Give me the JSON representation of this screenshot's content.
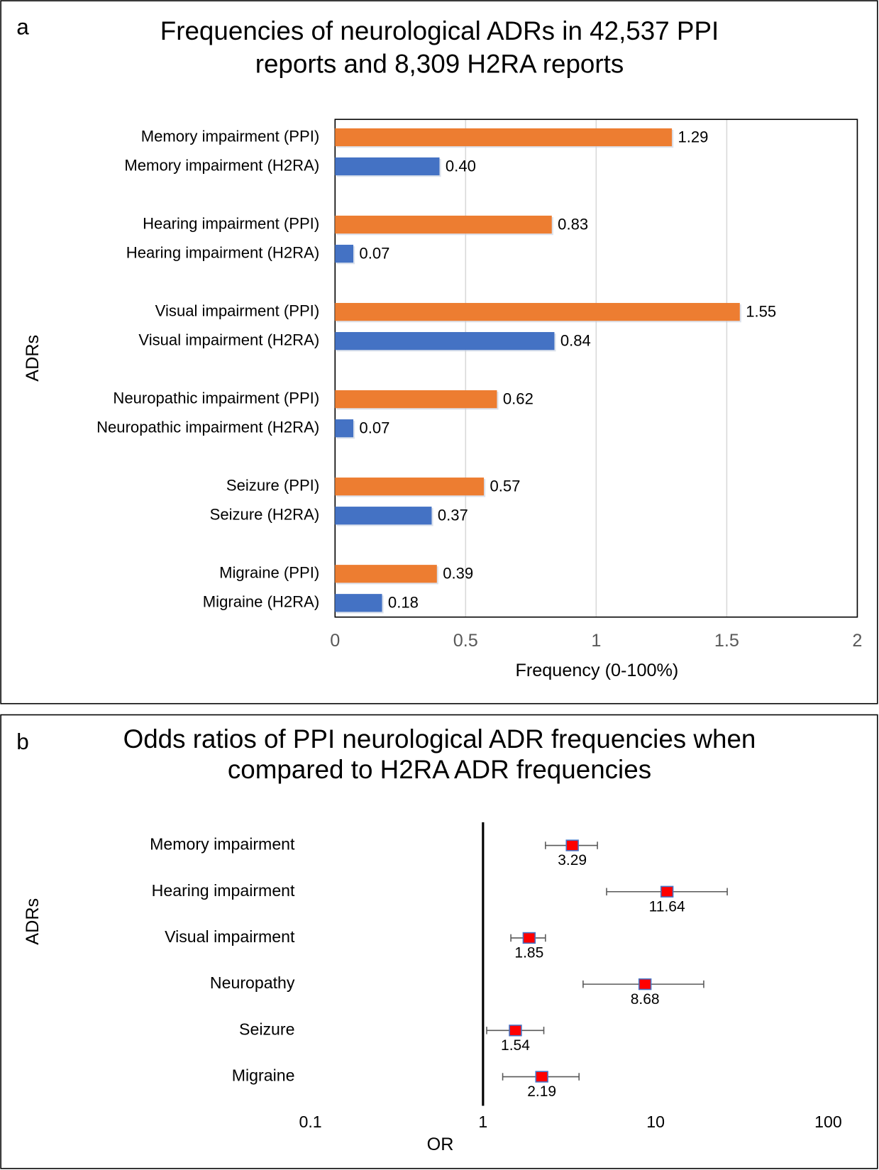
{
  "chart_data": [
    {
      "type": "hbar",
      "panel_label": "a",
      "title": [
        "Frequencies of neurological  ADRs in 42,537 PPI",
        "reports and 8,309 H2RA reports"
      ],
      "x_label": "Frequency (0-100%)",
      "y_label": "ADRs",
      "categories": [
        "Memory impairment (PPI)",
        "Memory impairment (H2RA)",
        "Hearing impairment (PPI)",
        "Hearing impairment (H2RA)",
        "Visual impairment (PPI)",
        "Visual impairment (H2RA)",
        "Neuropathic impairment (PPI)",
        "Neuropathic impairment (H2RA)",
        "Seizure (PPI)",
        "Seizure (H2RA)",
        "Migraine (PPI)",
        "Migraine (H2RA)"
      ],
      "values": [
        1.29,
        0.4,
        0.83,
        0.07,
        1.55,
        0.84,
        0.62,
        0.07,
        0.57,
        0.37,
        0.39,
        0.18
      ],
      "value_labels": [
        "1.29",
        "0.40",
        "0.83",
        "0.07",
        "1.55",
        "0.84",
        "0.62",
        "0.07",
        "0.57",
        "0.37",
        "0.39",
        "0.18"
      ],
      "colors": [
        "#ed7d31",
        "#4472c4",
        "#ed7d31",
        "#4472c4",
        "#ed7d31",
        "#4472c4",
        "#ed7d31",
        "#4472c4",
        "#ed7d31",
        "#4472c4",
        "#ed7d31",
        "#4472c4"
      ],
      "xlim": [
        0,
        2
      ],
      "xticks": [
        0,
        0.5,
        1,
        1.5,
        2
      ],
      "grid": true
    },
    {
      "type": "forest",
      "panel_label": "b",
      "title": [
        "Odds ratios of PPI neurological ADR frequencies when",
        "compared to H2RA ADR frequencies"
      ],
      "x_label": "OR",
      "y_label": "ADRs",
      "categories": [
        "Memory impairment",
        "Hearing impairment",
        "Visual impairment",
        "Neuropathy",
        "Seizure",
        "Migraine"
      ],
      "values": [
        3.29,
        11.64,
        1.85,
        8.68,
        1.54,
        2.19
      ],
      "ci_low": [
        2.3,
        5.2,
        1.45,
        3.8,
        1.05,
        1.3
      ],
      "ci_high": [
        4.6,
        26,
        2.3,
        19,
        2.25,
        3.6
      ],
      "color": "#ff0000",
      "edge_color": "#4472c4",
      "xlim": [
        0.1,
        100
      ],
      "xticks": [
        0.1,
        1,
        10,
        100
      ],
      "log_x": true,
      "reference_line": 1
    }
  ]
}
